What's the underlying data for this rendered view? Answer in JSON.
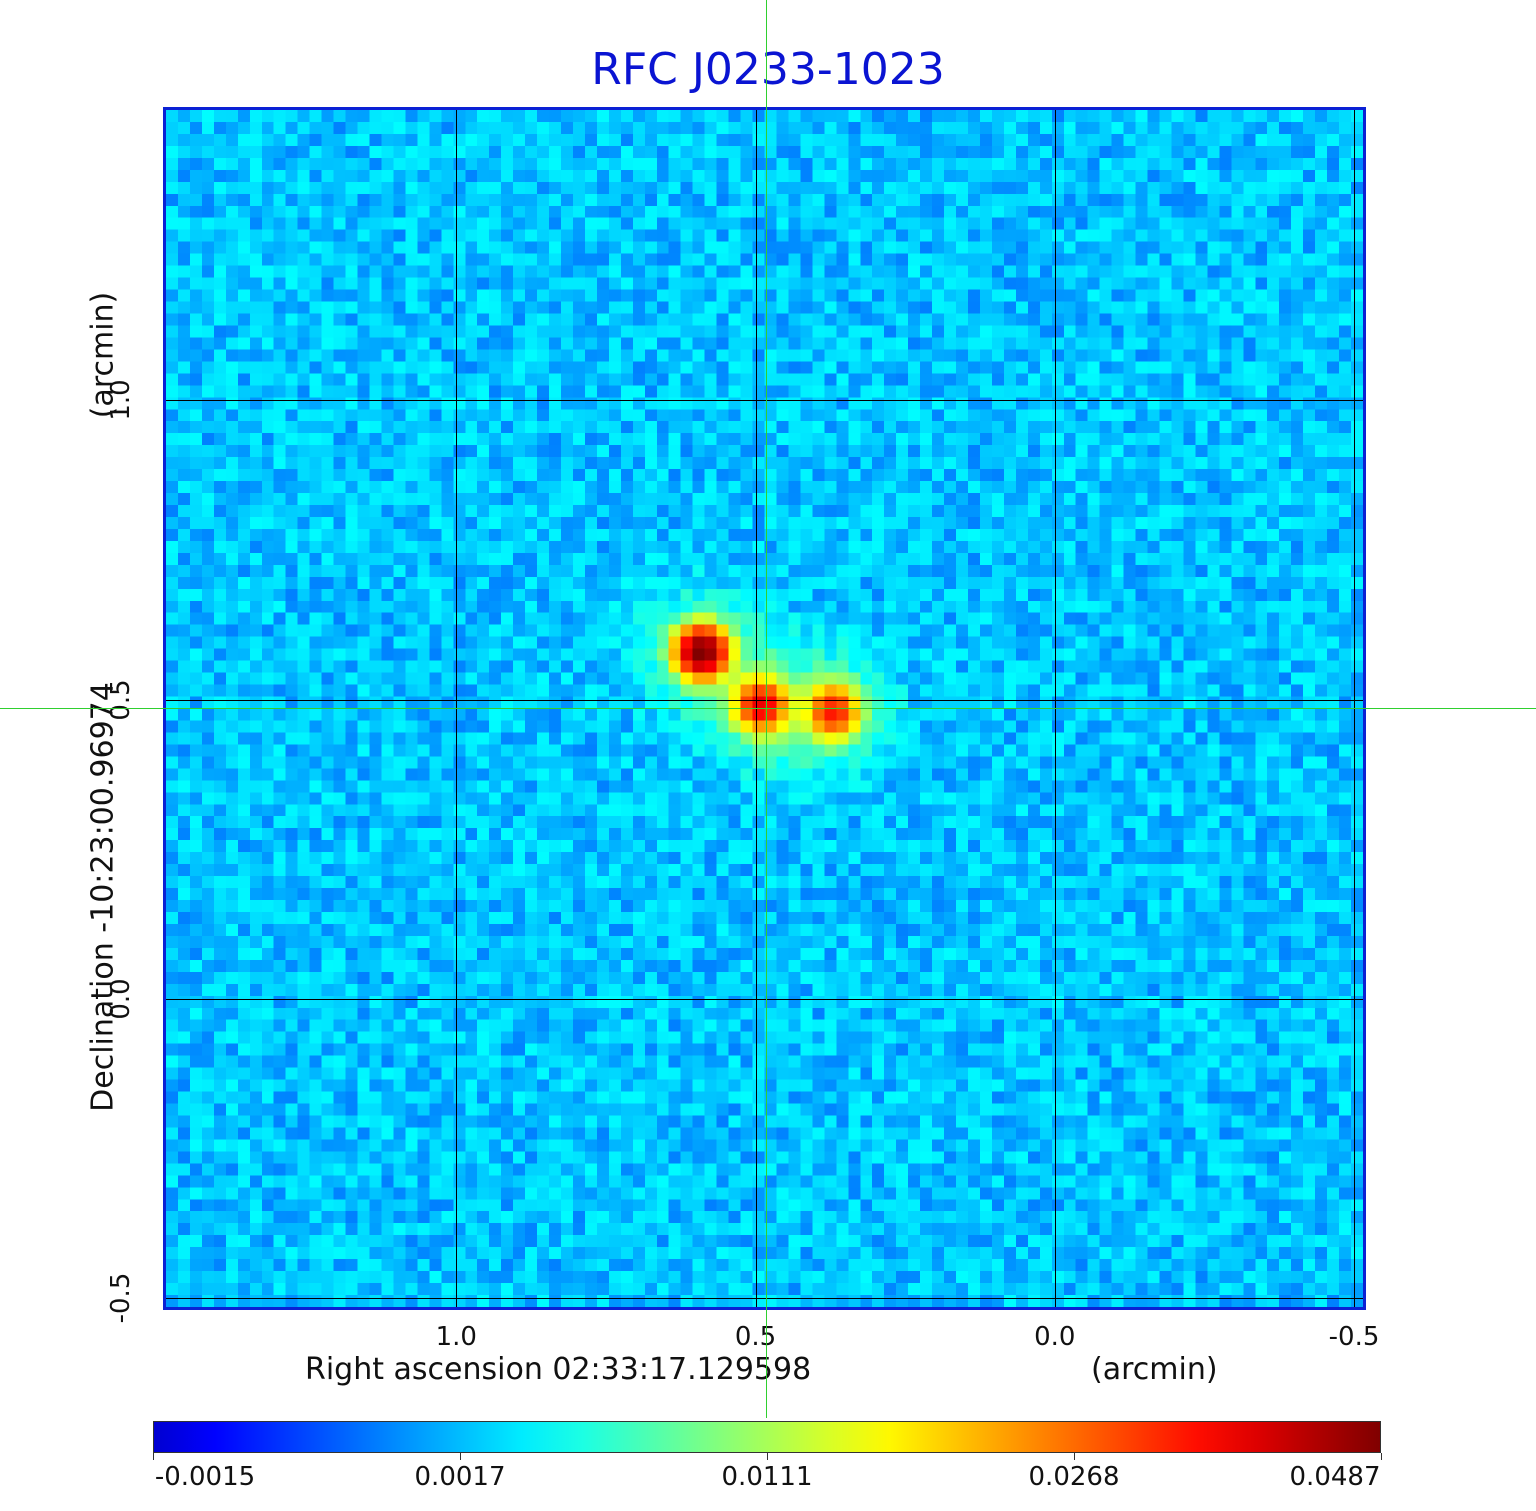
{
  "chart_data": {
    "type": "heatmap",
    "title": "RFC J0233-1023",
    "xlabel": "Right ascension  02:33:17.129598",
    "xunit": "(arcmin)",
    "ylabel": "Declination  -10:23:00.96974",
    "yunit": "(arcmin)",
    "xlim": [
      1.49,
      -0.52
    ],
    "ylim": [
      -0.52,
      1.49
    ],
    "x_ticks": [
      "1.0",
      "0.5",
      "0.0",
      "-0.5"
    ],
    "x_tick_values": [
      1.0,
      0.5,
      0.0,
      -0.5
    ],
    "y_ticks": [
      "-0.5",
      "0.0",
      "0.5",
      "1.0"
    ],
    "y_tick_values": [
      -0.5,
      0.0,
      0.5,
      1.0
    ],
    "grid": true,
    "colormap": "jet",
    "colorbar_ticks": [
      "-0.0015",
      "0.0017",
      "0.0111",
      "0.0268",
      "0.0487"
    ],
    "crosshair": {
      "x": 0.48,
      "y": 0.48
    },
    "sources": [
      {
        "x": 0.59,
        "y": 0.58,
        "peak": 0.0487
      },
      {
        "x": 0.49,
        "y": 0.49,
        "peak": 0.027
      },
      {
        "x": 0.37,
        "y": 0.48,
        "peak": 0.022
      }
    ],
    "background_level": -0.0002
  },
  "colors": {
    "title": "#0a14d2",
    "frame": "#0b21d4",
    "crosshair": "#2fd02f"
  }
}
